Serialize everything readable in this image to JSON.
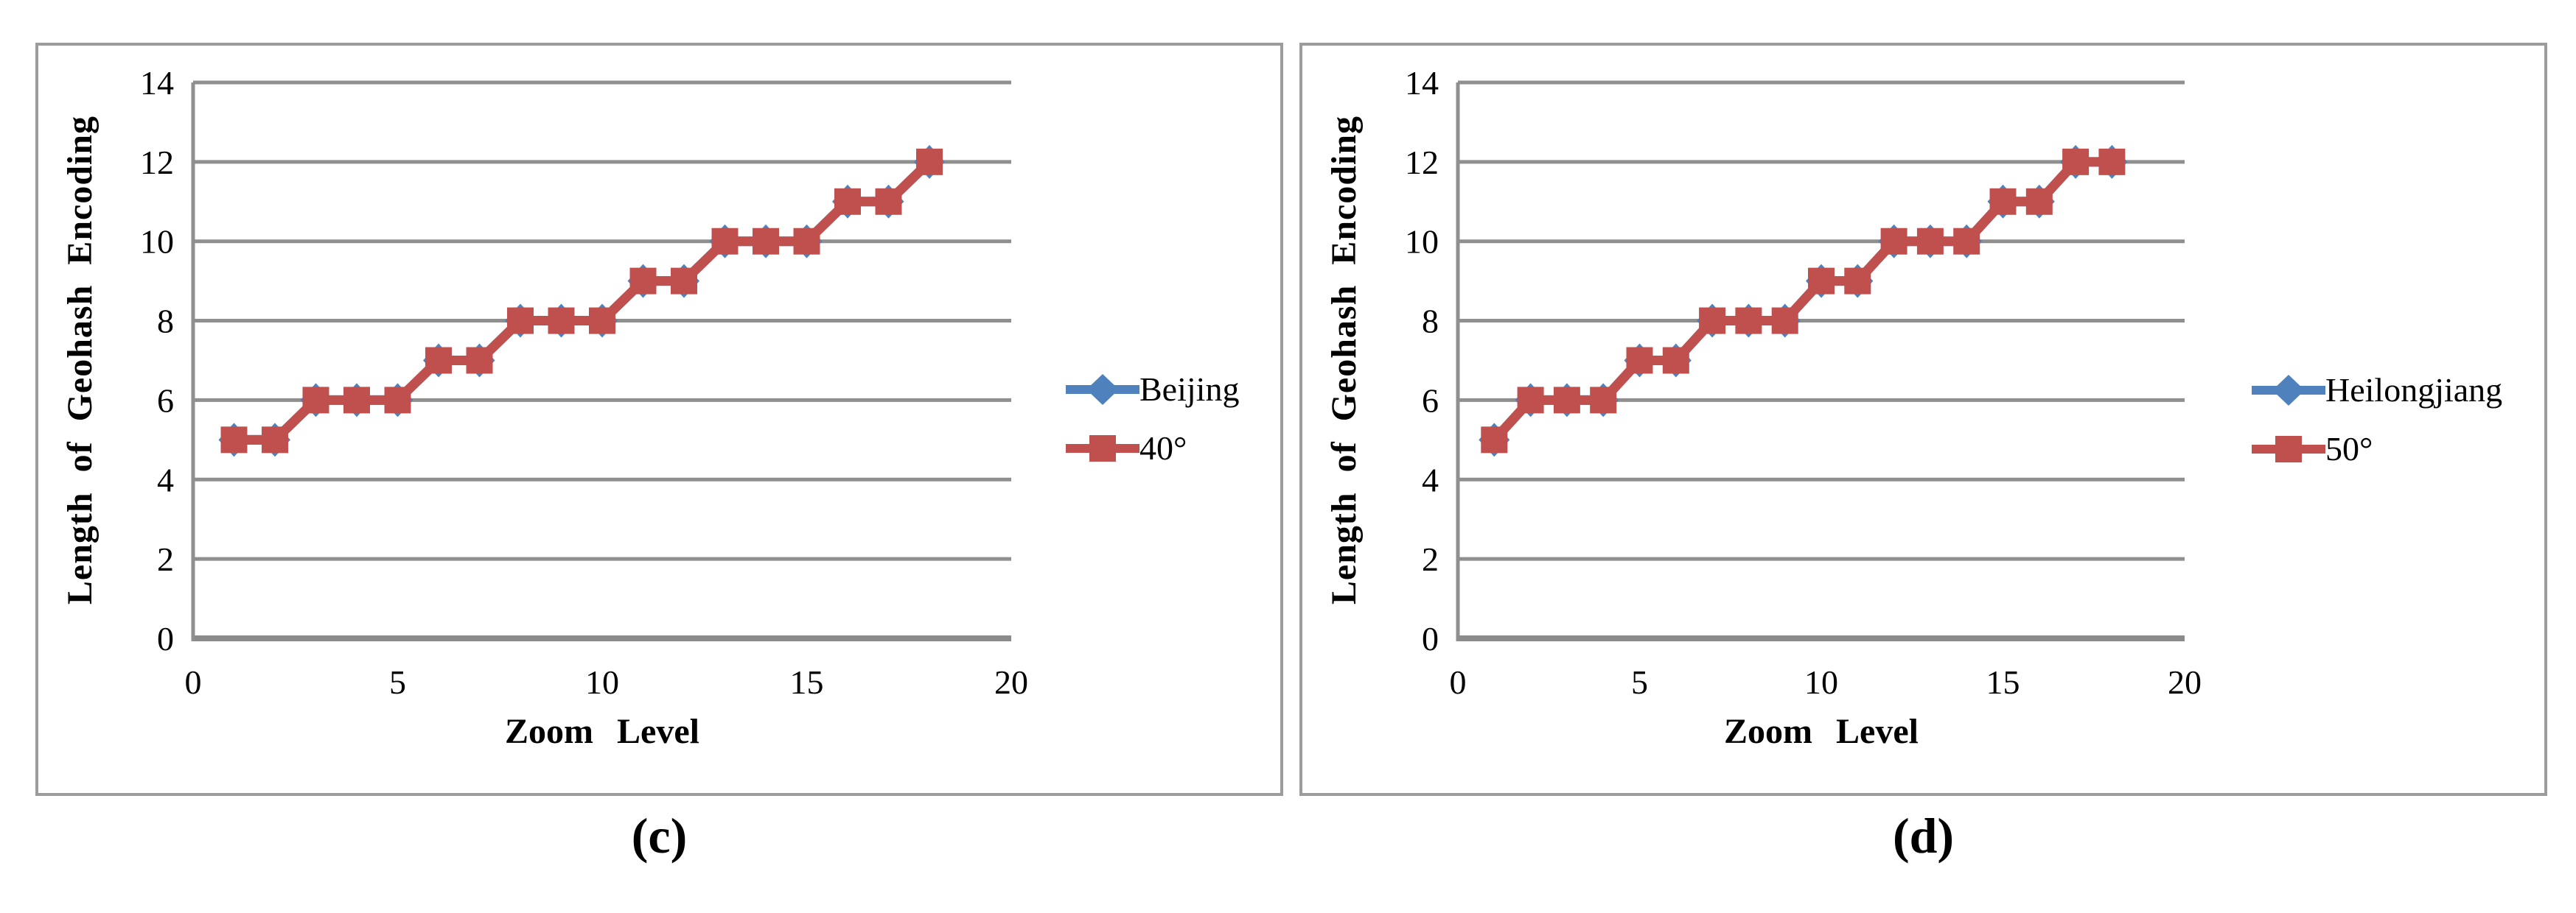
{
  "figure": {
    "grid_color": "#8f8f8f",
    "axis_color": "#8a8a8a",
    "panel_border_color": "#9c9c9c",
    "series_red": "#c0504d",
    "series_blue": "#4f81bd"
  },
  "chart_data": [
    {
      "type": "line",
      "caption": "(c)",
      "xlabel": "Zoom Level",
      "ylabel": "Length of Geohash Encoding",
      "x": [
        1,
        2,
        3,
        4,
        5,
        6,
        7,
        8,
        9,
        10,
        11,
        12,
        13,
        14,
        15,
        16,
        17,
        18
      ],
      "series": [
        {
          "name": "Beijing",
          "color": "#4f81bd",
          "marker": "diamond",
          "values": [
            5,
            5,
            6,
            6,
            6,
            7,
            7,
            8,
            8,
            8,
            9,
            9,
            10,
            10,
            10,
            11,
            11,
            12
          ]
        },
        {
          "name": "40°",
          "color": "#c0504d",
          "marker": "square",
          "values": [
            5,
            5,
            6,
            6,
            6,
            7,
            7,
            8,
            8,
            8,
            9,
            9,
            10,
            10,
            10,
            11,
            11,
            12
          ]
        }
      ],
      "xlim": [
        0,
        20
      ],
      "ylim": [
        0,
        14
      ],
      "xticks": [
        0,
        5,
        10,
        15,
        20
      ],
      "yticks": [
        0,
        2,
        4,
        6,
        8,
        10,
        12,
        14
      ],
      "grid": true,
      "legend_position": "right"
    },
    {
      "type": "line",
      "caption": "(d)",
      "xlabel": "Zoom Level",
      "ylabel": "Length of Geohash Encoding",
      "x": [
        1,
        2,
        3,
        4,
        5,
        6,
        7,
        8,
        9,
        10,
        11,
        12,
        13,
        14,
        15,
        16,
        17,
        18
      ],
      "series": [
        {
          "name": "Heilongjiang",
          "color": "#4f81bd",
          "marker": "diamond",
          "values": [
            5,
            6,
            6,
            6,
            7,
            7,
            8,
            8,
            8,
            9,
            9,
            10,
            10,
            10,
            11,
            11,
            12,
            12
          ]
        },
        {
          "name": "50°",
          "color": "#c0504d",
          "marker": "square",
          "values": [
            5,
            6,
            6,
            6,
            7,
            7,
            8,
            8,
            8,
            9,
            9,
            10,
            10,
            10,
            11,
            11,
            12,
            12
          ]
        }
      ],
      "xlim": [
        0,
        20
      ],
      "ylim": [
        0,
        14
      ],
      "xticks": [
        0,
        5,
        10,
        15,
        20
      ],
      "yticks": [
        0,
        2,
        4,
        6,
        8,
        10,
        12,
        14
      ],
      "grid": true,
      "legend_position": "right"
    }
  ]
}
